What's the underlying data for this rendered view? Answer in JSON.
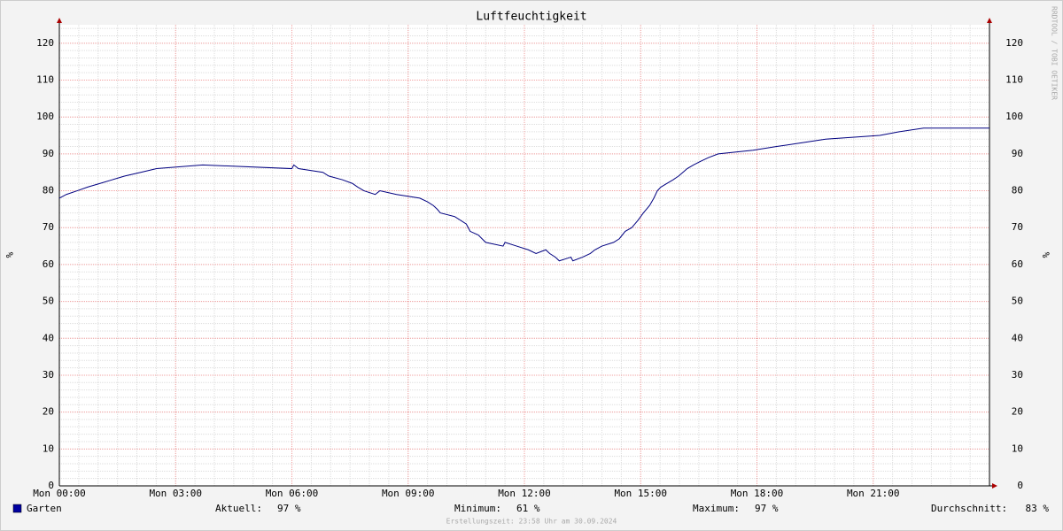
{
  "chart_data": {
    "type": "line",
    "title": "Luftfeuchtigkeit",
    "ylabel": "%",
    "x": [
      0,
      0.18,
      0.46,
      0.73,
      1.05,
      1.37,
      1.69,
      2.1,
      2.51,
      3.7,
      6.0,
      6.05,
      6.17,
      6.8,
      6.95,
      7.3,
      7.56,
      7.7,
      7.86,
      8.15,
      8.27,
      8.7,
      9.3,
      9.5,
      9.65,
      9.75,
      9.83,
      10.2,
      10.5,
      10.6,
      10.81,
      11.0,
      11.45,
      11.5,
      11.8,
      12.1,
      12.3,
      12.55,
      12.65,
      12.8,
      12.9,
      13.2,
      13.25,
      13.5,
      13.7,
      13.82,
      14.0,
      14.3,
      14.45,
      14.6,
      14.77,
      14.93,
      15.07,
      15.23,
      15.34,
      15.43,
      15.52,
      15.68,
      15.84,
      15.98,
      16.09,
      16.2,
      16.36,
      16.55,
      16.75,
      17.0,
      17.9,
      18.51,
      19.15,
      19.77,
      21.17,
      21.67,
      22.3,
      24
    ],
    "series": [
      {
        "name": "Garten",
        "color": "#000080",
        "values": [
          78,
          79,
          80,
          81,
          82,
          83,
          84,
          85,
          86,
          87,
          86,
          87,
          86,
          85,
          84,
          83,
          82,
          81,
          80,
          79,
          80,
          79,
          78,
          77,
          76,
          75,
          74,
          73,
          71,
          69,
          68,
          66,
          65,
          66,
          65,
          64,
          63,
          64,
          63,
          62,
          61,
          62,
          61,
          62,
          63,
          64,
          65,
          66,
          67,
          69,
          70,
          72,
          74,
          76,
          78,
          80,
          81,
          82,
          83,
          84,
          85,
          86,
          87,
          88,
          89,
          90,
          91,
          92,
          93,
          94,
          95,
          96,
          97,
          97
        ]
      }
    ],
    "xlim": [
      0,
      24
    ],
    "xticks": [
      {
        "value": 0,
        "label": "Mon 00:00"
      },
      {
        "value": 3,
        "label": "Mon 03:00"
      },
      {
        "value": 6,
        "label": "Mon 06:00"
      },
      {
        "value": 9,
        "label": "Mon 09:00"
      },
      {
        "value": 12,
        "label": "Mon 12:00"
      },
      {
        "value": 15,
        "label": "Mon 15:00"
      },
      {
        "value": 18,
        "label": "Mon 18:00"
      },
      {
        "value": 21,
        "label": "Mon 21:00"
      }
    ],
    "ylim": [
      0,
      125
    ],
    "yticks": [
      0,
      10,
      20,
      30,
      40,
      50,
      60,
      70,
      80,
      90,
      100,
      110,
      120
    ],
    "grid": true,
    "legend_stats": [
      {
        "label": "Aktuell:",
        "text": "97 %"
      },
      {
        "label": "Minimum:",
        "text": "61 %"
      },
      {
        "label": "Maximum:",
        "text": "97 %"
      },
      {
        "label": "Durchschnitt:",
        "text": "83 %"
      }
    ],
    "footer": "Erstellungszeit: 23:58 Uhr am 30.09.2024",
    "watermark": "RRDTOOL / TOBI OETIKER"
  }
}
